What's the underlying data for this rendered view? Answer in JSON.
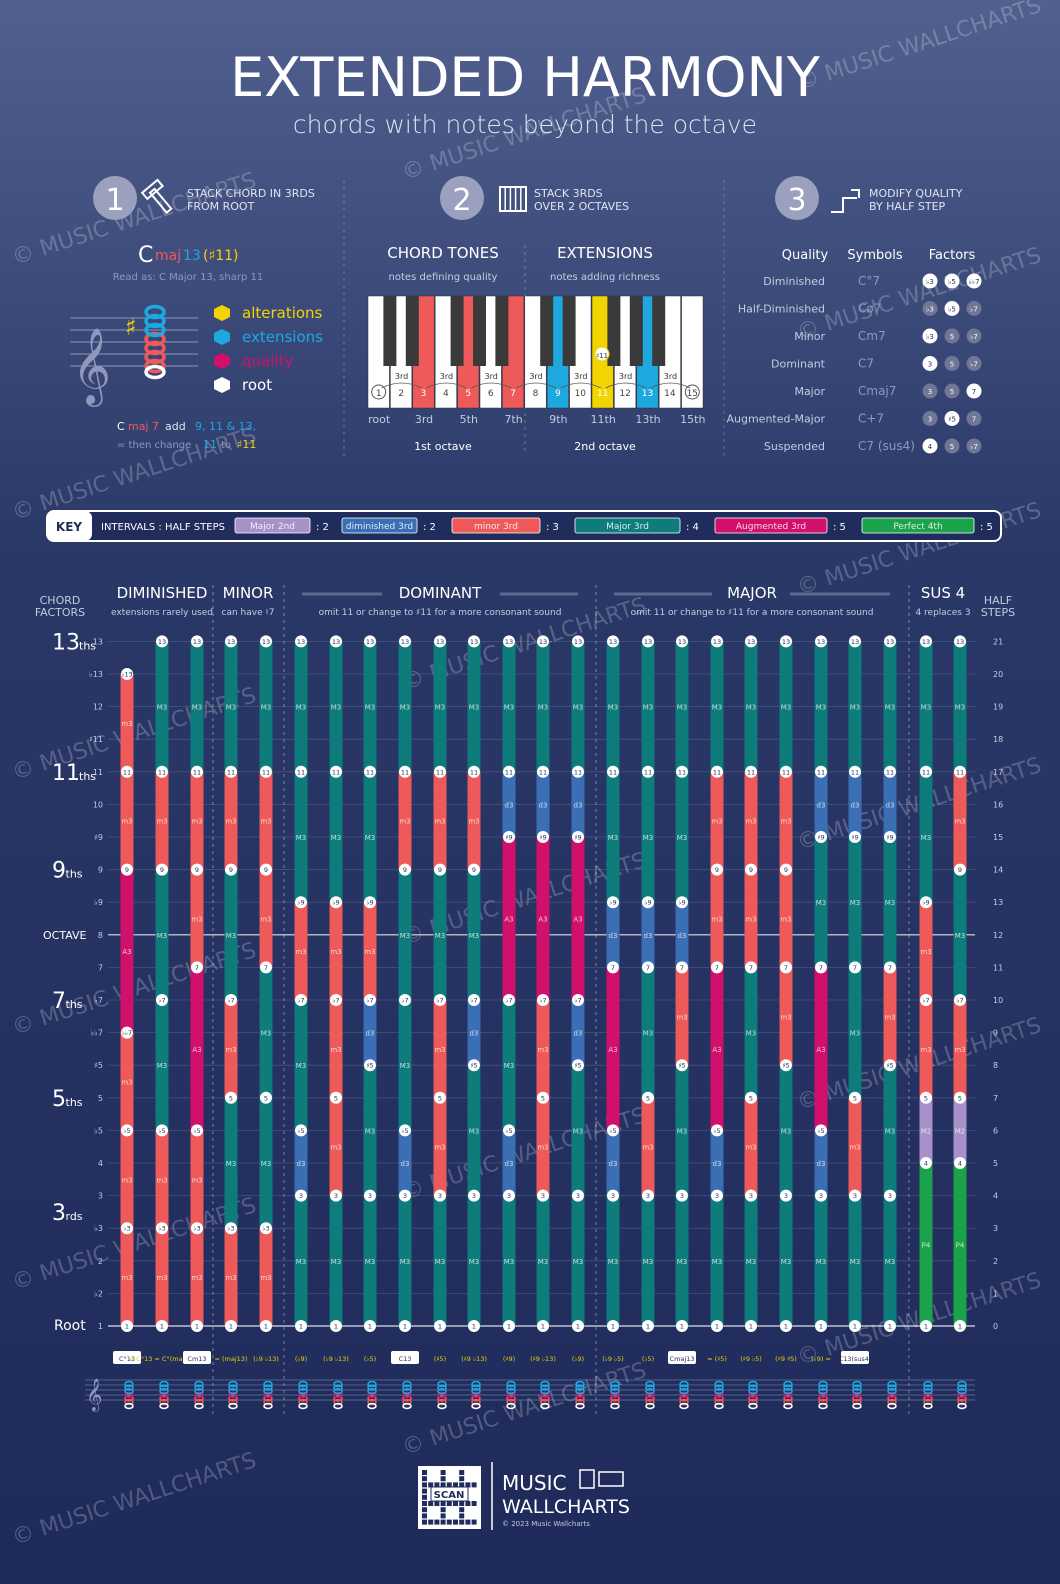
{
  "colors": {
    "bg_top": "#4a5a8c",
    "bg_bottom": "#1f2c5c",
    "teal": "#0e7c7b",
    "red": "#ee5a5a",
    "magenta": "#d0106a",
    "blue": "#3a6fb5",
    "lavender": "#a891c8",
    "green": "#1aa34a",
    "yellow": "#f2d400",
    "cyan": "#1ea8e0"
  },
  "header": {
    "title": "EXTENDED HARMONY",
    "subtitle": "chords with notes beyond the octave",
    "watermark": "© MUSIC WALLCHARTS"
  },
  "steps": [
    {
      "num": "1",
      "text1": "STACK CHORD IN 3RDS",
      "text2": "FROM ROOT",
      "icon": "hammer-icon"
    },
    {
      "num": "2",
      "text1": "STACK 3RDS",
      "text2": "OVER 2 OCTAVES",
      "icon": "piano-icon"
    },
    {
      "num": "3",
      "text1": "MODIFY QUALITY",
      "text2": "BY HALF STEP",
      "icon": "arrows-icon"
    }
  ],
  "panel1": {
    "chord_c": "C",
    "chord_maj": "maj",
    "chord_13": "13",
    "chord_alt": "(♯11)",
    "read_as": "Read as: C Major 13, sharp 11",
    "legend": [
      {
        "label": "alterations",
        "color": "#f2d400"
      },
      {
        "label": "extensions",
        "color": "#1ea8e0"
      },
      {
        "label": "quality",
        "color": "#d0106a"
      },
      {
        "label": "root",
        "color": "#ffffff"
      }
    ],
    "recipe1_a": "C",
    "recipe1_b": "maj 7",
    "recipe1_c": "add",
    "recipe1_d": "9, 11 & 13,",
    "recipe2_a": "= then change",
    "recipe2_b": "11",
    "recipe2_c": "to",
    "recipe2_d": "♯11"
  },
  "panel2": {
    "chord_tones": "CHORD TONES",
    "chord_tones_sub": "notes defining quality",
    "extensions": "EXTENSIONS",
    "extensions_sub": "notes adding richness",
    "key_numbers": [
      "1",
      "2",
      "3",
      "4",
      "5",
      "6",
      "7",
      "8",
      "9",
      "10",
      "11",
      "12",
      "13",
      "14",
      "15"
    ],
    "third_label": "3rd",
    "sharp11": "♯11",
    "bottom_labels": [
      "root",
      "3rd",
      "5th",
      "7th",
      "9th",
      "11th",
      "13th",
      "15th"
    ],
    "octave1": "1st octave",
    "octave2": "2nd octave"
  },
  "panel3": {
    "headers": [
      "Quality",
      "Symbols",
      "Factors"
    ],
    "rows": [
      {
        "quality": "Diminished",
        "symbol": "C°7",
        "factors": [
          "♭3",
          "♭5",
          "♭♭7"
        ],
        "on": [
          true,
          true,
          true
        ]
      },
      {
        "quality": "Half-Diminished",
        "symbol": "Cø7",
        "factors": [
          "♭3",
          "♭5",
          "♭7"
        ],
        "on": [
          false,
          true,
          false
        ]
      },
      {
        "quality": "Minor",
        "symbol": "Cm7",
        "factors": [
          "♭3",
          "5",
          "♭7"
        ],
        "on": [
          true,
          false,
          false
        ]
      },
      {
        "quality": "Dominant",
        "symbol": "C7",
        "factors": [
          "3",
          "5",
          "♭7"
        ],
        "on": [
          true,
          false,
          false
        ]
      },
      {
        "quality": "Major",
        "symbol": "Cmaj7",
        "factors": [
          "3",
          "5",
          "7"
        ],
        "on": [
          false,
          false,
          true
        ]
      },
      {
        "quality": "Augmented-Major",
        "symbol": "C+7",
        "factors": [
          "3",
          "♯5",
          "7"
        ],
        "on": [
          false,
          true,
          false
        ]
      },
      {
        "quality": "Suspended",
        "symbol": "C7 (sus4)",
        "factors": [
          "4",
          "5",
          "♭7"
        ],
        "on": [
          true,
          false,
          false
        ]
      }
    ]
  },
  "key_bar": {
    "key": "KEY",
    "intervals": "INTERVALS : HALF STEPS",
    "items": [
      {
        "label": "Major 2nd",
        "color": "#a891c8",
        "steps": ": 2"
      },
      {
        "label": "diminished 3rd",
        "color": "#3a6fb5",
        "steps": ": 2"
      },
      {
        "label": "minor 3rd",
        "color": "#ee5a5a",
        "steps": ": 3"
      },
      {
        "label": "Major 3rd",
        "color": "#0e7c7b",
        "steps": ": 4"
      },
      {
        "label": "Augmented 3rd",
        "color": "#d0106a",
        "steps": ": 5"
      },
      {
        "label": "Perfect 4th",
        "color": "#1aa34a",
        "steps": ": 5"
      }
    ]
  },
  "main": {
    "left_title": "CHORD FACTORS",
    "right_title": "HALF STEPS",
    "groups": [
      {
        "title": "DIMINISHED",
        "sub": "extensions rarely used"
      },
      {
        "title": "MINOR",
        "sub": "can have ♮7"
      },
      {
        "title": "DOMINANT",
        "sub": "omit 11 or change to ♯11 for a more consonant sound"
      },
      {
        "title": "MAJOR",
        "sub": "omit 11 or change to ♯11 for a more consonant sound"
      },
      {
        "title": "SUS 4",
        "sub": "4 replaces 3"
      }
    ],
    "big_labels": [
      {
        "text": "13",
        "suf": "ths",
        "level": 21
      },
      {
        "text": "11",
        "suf": "ths",
        "level": 17
      },
      {
        "text": "9",
        "suf": "ths",
        "level": 14
      },
      {
        "text": "OCTAVE",
        "suf": "",
        "level": 12
      },
      {
        "text": "7",
        "suf": "ths",
        "level": 10
      },
      {
        "text": "5",
        "suf": "ths",
        "level": 7
      },
      {
        "text": "3",
        "suf": "rds",
        "level": 3.5
      },
      {
        "text": "Root",
        "suf": "",
        "level": 0
      }
    ],
    "factor_ticks": [
      "1",
      "♭2",
      "2",
      "♭3",
      "3",
      "4",
      "♭5",
      "5",
      "♯5",
      "♭♭7",
      "♭7",
      "7",
      "8",
      "♭9",
      "9",
      "♯9",
      "10",
      "11",
      "♯11",
      "12",
      "♭13",
      "13"
    ],
    "half_steps": [
      "0",
      "1",
      "2",
      "3",
      "4",
      "5",
      "6",
      "7",
      "8",
      "9",
      "10",
      "11",
      "12",
      "13",
      "14",
      "15",
      "16",
      "17",
      "18",
      "19",
      "20",
      "21"
    ],
    "symbols": [
      {
        "text": "C°13",
        "boxed": true
      },
      {
        "text": "= C°13 = C°(maj13)",
        "boxed": false
      },
      {
        "text": "Cm13",
        "boxed": true
      },
      {
        "text": "= (maj13)",
        "boxed": false
      },
      {
        "text": "(♭9 ♭13)",
        "boxed": false
      },
      {
        "text": "(♭9)",
        "boxed": false
      },
      {
        "text": "(♭9 ♭13)",
        "boxed": false
      },
      {
        "text": "(♭5)",
        "boxed": false
      },
      {
        "text": "C13",
        "boxed": true
      },
      {
        "text": "(♯5)",
        "boxed": false
      },
      {
        "text": "(♯9 ♭13)",
        "boxed": false
      },
      {
        "text": "(♯9)",
        "boxed": false
      },
      {
        "text": "(♯9 ♭13)",
        "boxed": false
      },
      {
        "text": "(♭9)",
        "boxed": false
      },
      {
        "text": "(♭9 ♭5)",
        "boxed": false
      },
      {
        "text": "(♭5)",
        "boxed": false
      },
      {
        "text": "Cmaj13",
        "boxed": true
      },
      {
        "text": "= (♯5)",
        "boxed": false
      },
      {
        "text": "(♯9 ♭5)",
        "boxed": false
      },
      {
        "text": "(♯9 ♯5)",
        "boxed": false
      },
      {
        "text": "(♭9) =",
        "boxed": false
      },
      {
        "text": "C13(sus4)",
        "boxed": true
      }
    ]
  },
  "footer": {
    "scan": "SCAN",
    "brand1": "MUSIC",
    "brand2": "WALLCHARTS",
    "copyright": "© 2023 Music Wallcharts"
  }
}
